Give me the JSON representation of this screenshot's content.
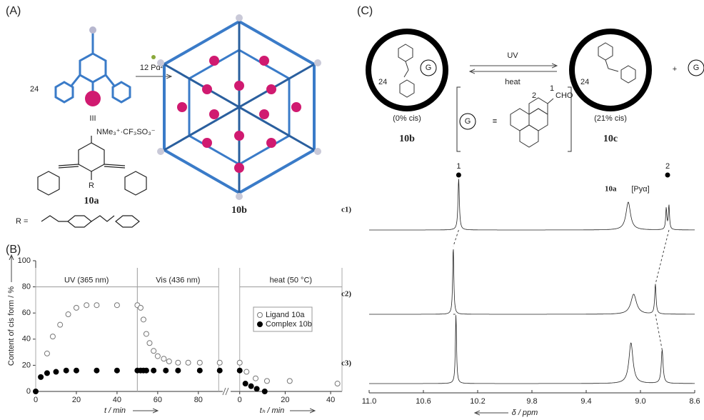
{
  "panel_labels": [
    "(A)",
    "(B)",
    "(C)"
  ],
  "scheme_a": {
    "count": "24",
    "ligand_mark": "III",
    "reagent": "12 Pd²⁺",
    "ammonium": "NMe₃⁺·CF₃SO₃⁻",
    "r_label": "R",
    "ligand": "10a",
    "cage": "10b",
    "r_def": "R ="
  },
  "scheme_c": {
    "count_left": "24",
    "guest_left": "G",
    "forward": "UV",
    "backward": "heat",
    "left_cis": "(0% cis)",
    "left": "10b",
    "count_right": "24",
    "right_cis": "(21% cis)",
    "right": "10c",
    "plus": "+",
    "guest_free": "G",
    "guest_eq": "G",
    "equiv": "≡",
    "cho": "CHO",
    "pos1": "1",
    "pos2": "2"
  },
  "chart_data": [
    {
      "type": "scatter",
      "ylabel": "Content of cis form / %",
      "xlabel": "t / min",
      "xlim": [
        0,
        92
      ],
      "ylim": [
        0,
        100
      ],
      "xticks": [
        0,
        20,
        40,
        60,
        80
      ],
      "yticks": [
        0,
        20,
        40,
        60,
        80,
        100
      ],
      "annotations": [
        {
          "text": "UV (365 nm)",
          "x_start": 0,
          "x_end": 50,
          "y": 80
        },
        {
          "text": "Vis (436 nm)",
          "x_start": 50,
          "x_end": 90,
          "y": 80
        }
      ],
      "series": [
        {
          "name": "Ligand 10a",
          "color": "#777777",
          "marker": "open",
          "x": [
            5.6,
            8.4,
            12,
            16,
            20,
            25,
            30,
            40,
            50,
            51.6,
            53,
            54.4,
            56,
            58,
            60,
            63,
            65.6,
            70,
            75,
            80.7,
            90.5
          ],
          "values": [
            29,
            42,
            51,
            59,
            64,
            66,
            66,
            66,
            66,
            64,
            55,
            44,
            37,
            31,
            27,
            25,
            23,
            22,
            22,
            22,
            22
          ]
        },
        {
          "name": "Complex 10b",
          "color": "#000000",
          "marker": "filled",
          "x": [
            0,
            2.5,
            5.6,
            10,
            15,
            20,
            30,
            40,
            50,
            51.6,
            53,
            54.4,
            58,
            64,
            70,
            80.7,
            90.5
          ],
          "values": [
            0,
            11,
            14,
            15,
            16,
            16,
            16,
            16,
            16,
            16,
            16,
            16,
            16,
            16,
            16,
            16,
            16
          ]
        }
      ]
    },
    {
      "type": "scatter",
      "xlabel": "tₕ / min",
      "xlim": [
        -4,
        45
      ],
      "ylim": [
        0,
        100
      ],
      "xticks": [
        0,
        20,
        40
      ],
      "annotations": [
        {
          "text": "heat (50 °C)",
          "x_start": 0,
          "x_end": 45,
          "y": 80
        }
      ],
      "series": [
        {
          "color": "#777777",
          "marker": "open",
          "x": [
            0,
            3,
            7,
            12,
            22,
            43
          ],
          "values": [
            22,
            15,
            10,
            8,
            8,
            6
          ]
        },
        {
          "color": "#000000",
          "marker": "filled",
          "x": [
            0,
            2.5,
            5,
            7.5,
            11
          ],
          "values": [
            16,
            6,
            4,
            2,
            0
          ]
        }
      ]
    },
    {
      "type": "spectrum",
      "xlabel": "δ / ppm",
      "xlim": [
        11.0,
        8.6
      ],
      "ylim": [
        0,
        100
      ],
      "xticks": [
        {
          "value": 11,
          "label": "11.0"
        },
        10.6,
        10.2,
        9.8,
        9.4,
        {
          "value": 9,
          "label": "9.0"
        },
        8.6
      ],
      "annotations": [
        {
          "text": "1",
          "x": 10.34
        },
        {
          "text": "10a",
          "x": 9.22
        },
        {
          "text": "[Pyα]",
          "x": 9.0
        },
        {
          "text": "2",
          "x": 8.8
        }
      ],
      "series": [
        {
          "name": "c1)",
          "x": [
            10.34,
            9.09,
            8.81,
            8.79
          ],
          "values": [
            72,
            39,
            30,
            34
          ],
          "widths": [
            0.006,
            0.02,
            0.005,
            0.005
          ]
        },
        {
          "name": "c2)",
          "x": [
            10.38,
            9.05,
            8.89
          ],
          "values": [
            95,
            28,
            42
          ],
          "widths": [
            0.005,
            0.025,
            0.006
          ]
        },
        {
          "name": "c3)",
          "x": [
            10.36,
            9.07,
            8.84
          ],
          "values": [
            97,
            57,
            47
          ],
          "widths": [
            0.005,
            0.018,
            0.008
          ]
        }
      ]
    }
  ]
}
